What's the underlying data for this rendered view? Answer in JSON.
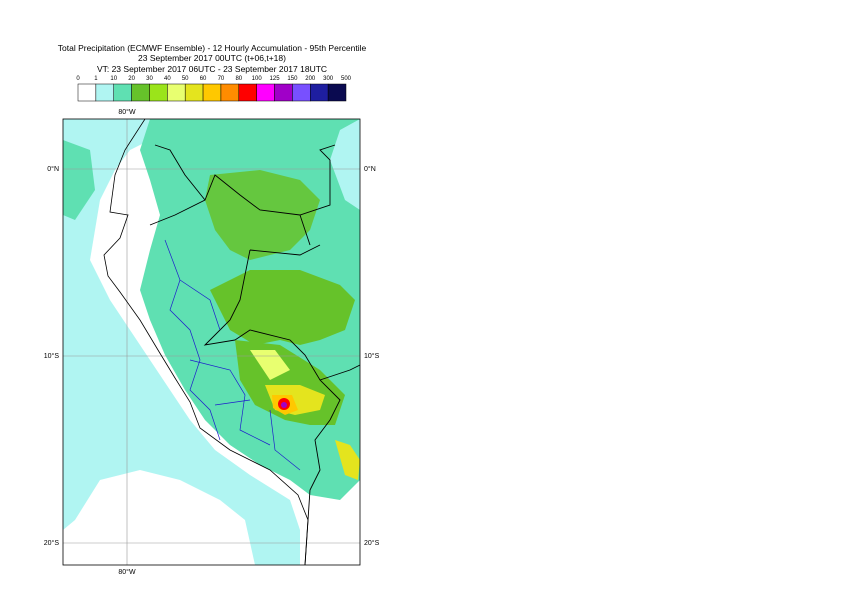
{
  "header": {
    "title_lines": [
      "Total Precipitation (ECMWF Ensemble) - 12 Hourly Accumulation - 95th Percentile",
      "23 September 2017 00UTC (t+06,t+18)",
      "VT: 23 September 2017 06UTC - 23 September 2017 18UTC"
    ]
  },
  "legend": {
    "ticks": [
      "0",
      "1",
      "10",
      "20",
      "30",
      "40",
      "50",
      "60",
      "70",
      "80",
      "100",
      "125",
      "150",
      "200",
      "300",
      "500"
    ],
    "colors": [
      "#ffffff",
      "#b0f5f2",
      "#5fe0b2",
      "#66c22a",
      "#9be41a",
      "#e8ff70",
      "#e4e41e",
      "#ffc800",
      "#ff8c00",
      "#ff0000",
      "#ff00ff",
      "#a000c8",
      "#7850ff",
      "#1e1ea0",
      "#0a0a50"
    ]
  },
  "map": {
    "lon_labels": [
      "80°W"
    ],
    "lat_labels": [
      "0°N",
      "10°S",
      "20°S"
    ]
  }
}
